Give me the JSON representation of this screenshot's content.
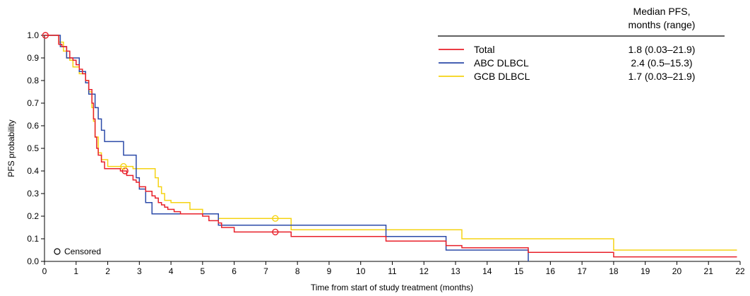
{
  "chart_data": {
    "type": "line",
    "subtype": "kaplan-meier step",
    "xlabel": "Time from start of study treatment (months)",
    "ylabel": "PFS probability",
    "xlim": [
      0,
      22
    ],
    "ylim": [
      0,
      1.0
    ],
    "xticks": [
      "0",
      "1",
      "2",
      "3",
      "4",
      "5",
      "6",
      "7",
      "8",
      "9",
      "10",
      "11",
      "12",
      "13",
      "14",
      "15",
      "16",
      "17",
      "18",
      "19",
      "20",
      "21",
      "22"
    ],
    "yticks": [
      "0.0",
      "0.1",
      "0.2",
      "0.3",
      "0.4",
      "0.5",
      "0.6",
      "0.7",
      "0.8",
      "0.9",
      "1.0"
    ],
    "grid": false,
    "legend": {
      "position": "top-right",
      "header": [
        "Median PFS,",
        "months (range)"
      ],
      "entries": [
        {
          "name": "Total",
          "median": "1.8 (0.03–21.9)",
          "color": "#e8202a"
        },
        {
          "name": "ABC DLBCL",
          "median": "2.4 (0.5–15.3)",
          "color": "#2b4aa8"
        },
        {
          "name": "GCB DLBCL",
          "median": "1.7 (0.03–21.9)",
          "color": "#f5d313"
        }
      ]
    },
    "censored_label": "Censored",
    "series": [
      {
        "name": "Total",
        "color": "#e8202a",
        "x": [
          0,
          0.45,
          0.55,
          0.7,
          0.8,
          0.9,
          1.0,
          1.1,
          1.2,
          1.3,
          1.4,
          1.5,
          1.55,
          1.6,
          1.65,
          1.7,
          1.8,
          1.9,
          2.4,
          2.6,
          2.8,
          2.9,
          3.0,
          3.2,
          3.4,
          3.5,
          3.6,
          3.7,
          3.8,
          3.9,
          4.1,
          4.3,
          4.6,
          5.0,
          5.2,
          5.5,
          5.6,
          6.0,
          7.0,
          7.5,
          7.8,
          10.8,
          12.7,
          13.2,
          15.3,
          18.0,
          21.9
        ],
        "y": [
          1.0,
          0.96,
          0.95,
          0.93,
          0.9,
          0.89,
          0.87,
          0.85,
          0.83,
          0.8,
          0.76,
          0.7,
          0.63,
          0.55,
          0.5,
          0.47,
          0.44,
          0.41,
          0.4,
          0.38,
          0.36,
          0.35,
          0.33,
          0.31,
          0.29,
          0.28,
          0.26,
          0.25,
          0.24,
          0.23,
          0.22,
          0.21,
          0.21,
          0.2,
          0.18,
          0.17,
          0.15,
          0.13,
          0.13,
          0.13,
          0.11,
          0.09,
          0.07,
          0.06,
          0.04,
          0.02,
          0.02
        ]
      },
      {
        "name": "ABC DLBCL",
        "color": "#2b4aa8",
        "x": [
          0,
          0.5,
          0.7,
          0.8,
          0.9,
          1.1,
          1.3,
          1.4,
          1.5,
          1.6,
          1.7,
          1.8,
          1.9,
          2.0,
          2.5,
          2.8,
          2.9,
          3.0,
          3.2,
          3.3,
          3.4,
          3.5,
          5.5,
          10.8,
          12.7,
          15.3
        ],
        "y": [
          1.0,
          0.95,
          0.9,
          0.9,
          0.9,
          0.84,
          0.79,
          0.74,
          0.74,
          0.68,
          0.63,
          0.58,
          0.53,
          0.53,
          0.47,
          0.47,
          0.37,
          0.32,
          0.26,
          0.26,
          0.21,
          0.21,
          0.16,
          0.11,
          0.05,
          0.0
        ]
      },
      {
        "name": "GCB DLBCL",
        "color": "#f5d313",
        "x": [
          0,
          0.45,
          0.6,
          0.7,
          0.8,
          0.9,
          1.1,
          1.3,
          1.4,
          1.5,
          1.55,
          1.6,
          1.7,
          1.8,
          2.0,
          2.5,
          2.8,
          3.0,
          3.5,
          3.6,
          3.7,
          3.8,
          4.0,
          4.6,
          5.0,
          5.5,
          7.0,
          7.8,
          13.2,
          18.0,
          21.9
        ],
        "y": [
          1.0,
          0.97,
          0.93,
          0.9,
          0.89,
          0.86,
          0.83,
          0.8,
          0.75,
          0.68,
          0.62,
          0.55,
          0.48,
          0.45,
          0.42,
          0.42,
          0.41,
          0.41,
          0.37,
          0.33,
          0.3,
          0.27,
          0.26,
          0.23,
          0.21,
          0.19,
          0.19,
          0.14,
          0.1,
          0.05,
          0.05
        ]
      }
    ],
    "censored_marks": [
      {
        "series": "Total",
        "x": 0.03,
        "y": 1.0
      },
      {
        "series": "Total",
        "x": 2.55,
        "y": 0.4
      },
      {
        "series": "Total",
        "x": 7.3,
        "y": 0.13
      },
      {
        "series": "GCB DLBCL",
        "x": 2.5,
        "y": 0.42
      },
      {
        "series": "GCB DLBCL",
        "x": 7.3,
        "y": 0.19
      }
    ]
  }
}
